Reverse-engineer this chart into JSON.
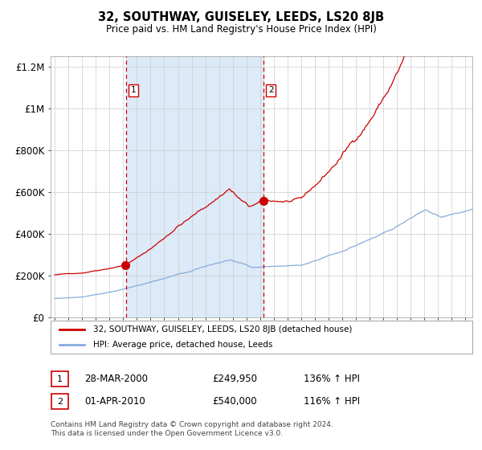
{
  "title": "32, SOUTHWAY, GUISELEY, LEEDS, LS20 8JB",
  "subtitle": "Price paid vs. HM Land Registry's House Price Index (HPI)",
  "background_color": "#ffffff",
  "plot_bg_color": "#ffffff",
  "shade_color": "#ddeaf7",
  "grid_color": "#cccccc",
  "red_line_color": "#cc0000",
  "blue_line_color": "#88aadd",
  "dashed_line_color": "#cc0000",
  "sale1_year": 2000.2,
  "sale2_year": 2010.25,
  "ylim": [
    0,
    1250000
  ],
  "xlim_start": 1994.7,
  "xlim_end": 2025.5,
  "legend_line1": "32, SOUTHWAY, GUISELEY, LEEDS, LS20 8JB (detached house)",
  "legend_line2": "HPI: Average price, detached house, Leeds",
  "table_row1": [
    "1",
    "28-MAR-2000",
    "£249,950",
    "136% ↑ HPI"
  ],
  "table_row2": [
    "2",
    "01-APR-2010",
    "£540,000",
    "116% ↑ HPI"
  ],
  "footnote": "Contains HM Land Registry data © Crown copyright and database right 2024.\nThis data is licensed under the Open Government Licence v3.0.",
  "ytick_labels": [
    "£0",
    "£200K",
    "£400K",
    "£600K",
    "£800K",
    "£1M",
    "£1.2M"
  ],
  "ytick_values": [
    0,
    200000,
    400000,
    600000,
    800000,
    1000000,
    1200000
  ]
}
